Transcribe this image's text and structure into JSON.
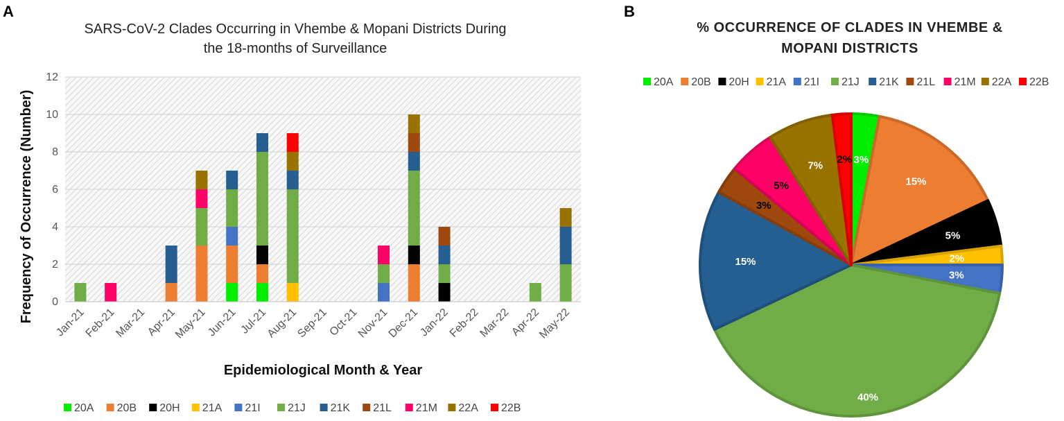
{
  "panels": {
    "a": "A",
    "b": "B"
  },
  "chart_data": [
    {
      "type": "bar",
      "stacked": true,
      "title": "SARS-CoV-2 Clades Occurring in Vhembe & Mopani Districts During the 18-months of Surveillance",
      "title_lines": [
        "SARS-CoV-2 Clades Occurring in Vhembe & Mopani Districts During",
        "the 18-months of Surveillance"
      ],
      "xlabel": "Epidemiological Month & Year",
      "ylabel": "Frequency of Occurrence (Number)",
      "ylim": [
        0,
        12
      ],
      "yticks": [
        0,
        2,
        4,
        6,
        8,
        10,
        12
      ],
      "grid": true,
      "legend_position": "bottom",
      "categories": [
        "Jan-21",
        "Feb-21",
        "Mar-21",
        "Apr-21",
        "May-21",
        "Jun-21",
        "Jul-21",
        "Aug-21",
        "Sep-21",
        "Oct-21",
        "Nov-21",
        "Dec-21",
        "Jan-22",
        "Feb-22",
        "Mar-22",
        "Apr-22",
        "May-22"
      ],
      "series": [
        {
          "name": "20A",
          "color": "#00ee00",
          "values": [
            0,
            0,
            0,
            0,
            0,
            1,
            1,
            0,
            0,
            0,
            0,
            0,
            0,
            0,
            0,
            0,
            0
          ]
        },
        {
          "name": "20B",
          "color": "#ed7d31",
          "values": [
            0,
            0,
            0,
            1,
            3,
            2,
            1,
            0,
            0,
            0,
            0,
            2,
            0,
            0,
            0,
            0,
            0
          ]
        },
        {
          "name": "20H",
          "color": "#000000",
          "values": [
            0,
            0,
            0,
            0,
            0,
            0,
            1,
            0,
            0,
            0,
            0,
            1,
            1,
            0,
            0,
            0,
            0
          ]
        },
        {
          "name": "21A",
          "color": "#ffc000",
          "values": [
            0,
            0,
            0,
            0,
            0,
            0,
            0,
            1,
            0,
            0,
            0,
            0,
            0,
            0,
            0,
            0,
            0
          ]
        },
        {
          "name": "21I",
          "color": "#4472c4",
          "values": [
            0,
            0,
            0,
            0,
            0,
            1,
            0,
            0,
            0,
            0,
            1,
            0,
            0,
            0,
            0,
            0,
            0
          ]
        },
        {
          "name": "21J",
          "color": "#70ad47",
          "values": [
            1,
            0,
            0,
            0,
            2,
            2,
            5,
            5,
            0,
            0,
            1,
            4,
            1,
            0,
            0,
            1,
            2
          ]
        },
        {
          "name": "21K",
          "color": "#255e91",
          "values": [
            0,
            0,
            0,
            2,
            0,
            1,
            1,
            1,
            0,
            0,
            0,
            1,
            1,
            0,
            0,
            0,
            2
          ]
        },
        {
          "name": "21L",
          "color": "#9e480e",
          "values": [
            0,
            0,
            0,
            0,
            0,
            0,
            0,
            0,
            0,
            0,
            0,
            1,
            1,
            0,
            0,
            0,
            0
          ]
        },
        {
          "name": "21M",
          "color": "#ff0066",
          "values": [
            0,
            1,
            0,
            0,
            1,
            0,
            0,
            0,
            0,
            0,
            1,
            0,
            0,
            0,
            0,
            0,
            0
          ]
        },
        {
          "name": "22A",
          "color": "#997300",
          "values": [
            0,
            0,
            0,
            0,
            1,
            0,
            0,
            1,
            0,
            0,
            0,
            1,
            0,
            0,
            0,
            0,
            1
          ]
        },
        {
          "name": "22B",
          "color": "#ff0000",
          "values": [
            0,
            0,
            0,
            0,
            0,
            0,
            0,
            1,
            0,
            0,
            0,
            0,
            0,
            0,
            0,
            0,
            0
          ]
        }
      ]
    },
    {
      "type": "pie",
      "title": "% OCCURRENCE OF CLADES IN VHEMBE & MOPANI DISTRICTS",
      "title_lines": [
        "% OCCURRENCE OF CLADES IN VHEMBE &",
        "MOPANI DISTRICTS"
      ],
      "legend_position": "top",
      "slices": [
        {
          "name": "20A",
          "value": 3,
          "label": "3%",
          "color": "#00ee00",
          "label_color": "#ffffff"
        },
        {
          "name": "20B",
          "value": 15,
          "label": "15%",
          "color": "#ed7d31",
          "label_color": "#ffffff"
        },
        {
          "name": "20H",
          "value": 5,
          "label": "5%",
          "color": "#000000",
          "label_color": "#ffffff"
        },
        {
          "name": "21A",
          "value": 2,
          "label": "2%",
          "color": "#ffc000",
          "label_color": "#ffffff"
        },
        {
          "name": "21I",
          "value": 3,
          "label": "3%",
          "color": "#4472c4",
          "label_color": "#ffffff"
        },
        {
          "name": "21J",
          "value": 40,
          "label": "40%",
          "color": "#70ad47",
          "label_color": "#ffffff"
        },
        {
          "name": "21K",
          "value": 15,
          "label": "15%",
          "color": "#255e91",
          "label_color": "#ffffff"
        },
        {
          "name": "21L",
          "value": 3,
          "label": "3%",
          "color": "#9e480e",
          "label_color": "#000000"
        },
        {
          "name": "21M",
          "value": 5,
          "label": "5%",
          "color": "#ff0066",
          "label_color": "#000000"
        },
        {
          "name": "22A",
          "value": 7,
          "label": "7%",
          "color": "#997300",
          "label_color": "#ffffff"
        },
        {
          "name": "22B",
          "value": 2,
          "label": "2%",
          "color": "#ff0000",
          "label_color": "#000000"
        }
      ]
    }
  ]
}
